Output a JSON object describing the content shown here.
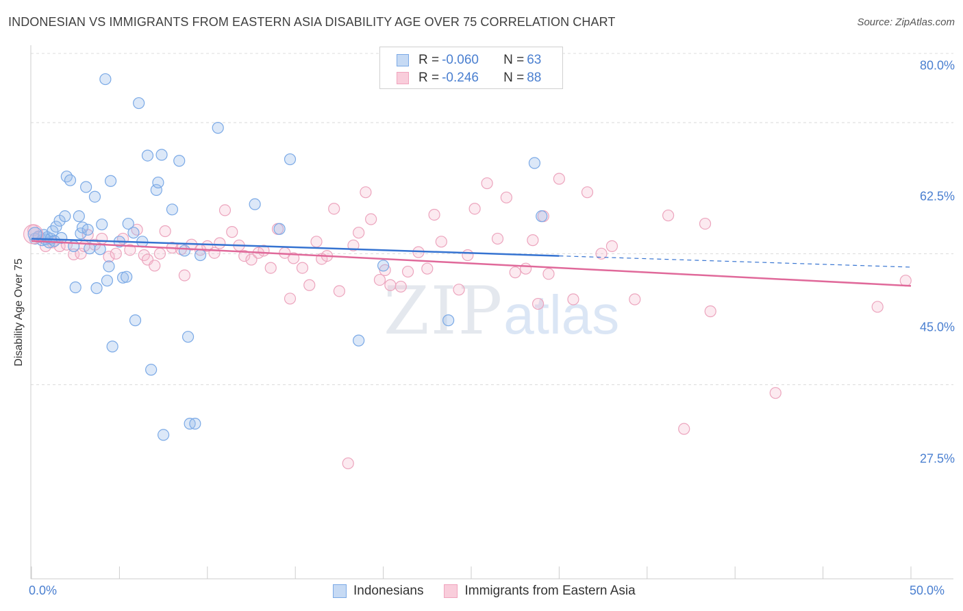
{
  "title": "INDONESIAN VS IMMIGRANTS FROM EASTERN ASIA DISABILITY AGE OVER 75 CORRELATION CHART",
  "source": "Source: ZipAtlas.com",
  "watermark": {
    "zip": "ZIP",
    "atlas": "atlas"
  },
  "legend_top": {
    "rows": [
      {
        "r_label": "R = ",
        "r_value": "-0.060",
        "n_label": "N = ",
        "n_value": "63"
      },
      {
        "r_label": "R = ",
        "r_value": "-0.246",
        "n_label": "N = ",
        "n_value": "88"
      }
    ]
  },
  "legend_bottom": [
    "Indonesians",
    "Immigrants from Eastern Asia"
  ],
  "chart_data": {
    "type": "scatter",
    "title": "INDONESIAN VS IMMIGRANTS FROM EASTERN ASIA DISABILITY AGE OVER 75 CORRELATION CHART",
    "xlabel": "",
    "ylabel": "Disability Age Over 75",
    "xlim": [
      0,
      50
    ],
    "ylim": [
      10,
      83
    ],
    "y_ticks": [
      27.5,
      45.0,
      62.5,
      80.0
    ],
    "y_tick_labels": [
      "27.5%",
      "45.0%",
      "62.5%",
      "80.0%"
    ],
    "x_tick_labels": [
      "0.0%",
      "50.0%"
    ],
    "grid": "horizontal dashed",
    "legend_position": "top-center",
    "colors": {
      "Indonesians": "#7aa9e6",
      "Immigrants from Eastern Asia": "#f0a3bd",
      "Indonesians_line": "#3573d1",
      "Immigrants_line": "#e0699a"
    },
    "series": [
      {
        "name": "Indonesians",
        "r": -0.06,
        "n": 63,
        "trend": {
          "x0": 0,
          "y0": 47.0,
          "x1": 30,
          "y1": 44.7,
          "dashed_to": 50,
          "dashed_y": 43.2
        },
        "points": [
          [
            0.2,
            47.0
          ],
          [
            0.4,
            47.3
          ],
          [
            0.6,
            46.8
          ],
          [
            0.7,
            47.5
          ],
          [
            0.8,
            46.9
          ],
          [
            0.9,
            47.2
          ],
          [
            1.0,
            46.5
          ],
          [
            1.1,
            47.0
          ],
          [
            1.2,
            48.0
          ],
          [
            1.3,
            46.7
          ],
          [
            1.4,
            48.6
          ],
          [
            1.6,
            49.4
          ],
          [
            1.7,
            47.1
          ],
          [
            1.9,
            50.0
          ],
          [
            2.0,
            55.3
          ],
          [
            2.2,
            54.8
          ],
          [
            2.4,
            46.0
          ],
          [
            2.5,
            40.5
          ],
          [
            2.7,
            50.0
          ],
          [
            2.8,
            47.7
          ],
          [
            2.9,
            48.5
          ],
          [
            3.1,
            53.9
          ],
          [
            3.2,
            48.2
          ],
          [
            3.3,
            45.7
          ],
          [
            3.6,
            52.6
          ],
          [
            3.7,
            40.4
          ],
          [
            3.9,
            45.6
          ],
          [
            4.0,
            48.9
          ],
          [
            4.2,
            68.3
          ],
          [
            4.3,
            41.4
          ],
          [
            4.4,
            43.3
          ],
          [
            4.5,
            54.7
          ],
          [
            4.6,
            32.6
          ],
          [
            5.0,
            46.6
          ],
          [
            5.2,
            41.8
          ],
          [
            5.4,
            41.9
          ],
          [
            5.5,
            49.0
          ],
          [
            5.8,
            47.8
          ],
          [
            5.9,
            36.1
          ],
          [
            6.1,
            65.1
          ],
          [
            6.3,
            46.6
          ],
          [
            6.6,
            58.1
          ],
          [
            6.8,
            29.5
          ],
          [
            7.1,
            53.5
          ],
          [
            7.2,
            54.5
          ],
          [
            7.4,
            58.2
          ],
          [
            7.5,
            20.8
          ],
          [
            8.0,
            50.9
          ],
          [
            8.4,
            57.4
          ],
          [
            8.7,
            45.4
          ],
          [
            8.9,
            33.9
          ],
          [
            9.0,
            22.3
          ],
          [
            9.3,
            22.3
          ],
          [
            9.6,
            44.8
          ],
          [
            10.6,
            61.8
          ],
          [
            12.7,
            51.6
          ],
          [
            14.1,
            48.3
          ],
          [
            14.7,
            57.6
          ],
          [
            18.6,
            33.4
          ],
          [
            20.0,
            43.4
          ],
          [
            23.7,
            36.1
          ],
          [
            28.6,
            57.1
          ],
          [
            29.0,
            50.0
          ]
        ]
      },
      {
        "name": "Immigrants from Eastern Asia",
        "r": -0.246,
        "n": 88,
        "trend": {
          "x0": 0,
          "y0": 46.7,
          "x1": 50,
          "y1": 40.7
        },
        "points": [
          [
            0.1,
            48.1
          ],
          [
            0.4,
            47.2
          ],
          [
            0.8,
            46.0
          ],
          [
            1.2,
            46.5
          ],
          [
            1.6,
            46.0
          ],
          [
            2.0,
            46.2
          ],
          [
            2.4,
            44.9
          ],
          [
            2.8,
            45.0
          ],
          [
            3.2,
            47.5
          ],
          [
            3.6,
            46.2
          ],
          [
            4.0,
            47.0
          ],
          [
            4.4,
            44.6
          ],
          [
            4.8,
            45.0
          ],
          [
            5.2,
            47.0
          ],
          [
            5.6,
            45.5
          ],
          [
            6.0,
            48.2
          ],
          [
            6.4,
            44.8
          ],
          [
            6.6,
            44.2
          ],
          [
            7.0,
            43.4
          ],
          [
            7.3,
            45.0
          ],
          [
            7.6,
            48.0
          ],
          [
            8.0,
            45.8
          ],
          [
            8.5,
            45.6
          ],
          [
            8.7,
            42.1
          ],
          [
            9.1,
            46.2
          ],
          [
            9.6,
            45.5
          ],
          [
            10.0,
            46.0
          ],
          [
            10.4,
            45.1
          ],
          [
            10.7,
            46.4
          ],
          [
            11.0,
            50.8
          ],
          [
            11.4,
            47.9
          ],
          [
            11.8,
            46.1
          ],
          [
            12.1,
            44.7
          ],
          [
            12.5,
            44.2
          ],
          [
            12.9,
            45.1
          ],
          [
            13.2,
            45.4
          ],
          [
            13.6,
            43.1
          ],
          [
            14.0,
            48.3
          ],
          [
            14.4,
            45.1
          ],
          [
            14.7,
            39.0
          ],
          [
            14.9,
            44.4
          ],
          [
            15.4,
            43.1
          ],
          [
            15.8,
            40.8
          ],
          [
            16.2,
            46.6
          ],
          [
            16.5,
            44.3
          ],
          [
            16.8,
            44.7
          ],
          [
            17.2,
            51.0
          ],
          [
            17.5,
            40.0
          ],
          [
            18.3,
            46.1
          ],
          [
            18.6,
            47.8
          ],
          [
            19.0,
            53.2
          ],
          [
            19.3,
            49.6
          ],
          [
            19.8,
            41.5
          ],
          [
            20.1,
            42.8
          ],
          [
            20.4,
            40.8
          ],
          [
            21.0,
            40.6
          ],
          [
            21.4,
            42.6
          ],
          [
            22.0,
            45.2
          ],
          [
            22.5,
            43.0
          ],
          [
            22.9,
            50.2
          ],
          [
            23.3,
            46.6
          ],
          [
            24.3,
            40.2
          ],
          [
            24.8,
            44.8
          ],
          [
            25.2,
            51.0
          ],
          [
            25.9,
            54.4
          ],
          [
            26.5,
            47.0
          ],
          [
            27.0,
            52.5
          ],
          [
            27.5,
            42.5
          ],
          [
            28.1,
            43.0
          ],
          [
            28.5,
            46.8
          ],
          [
            28.8,
            38.3
          ],
          [
            29.1,
            50.0
          ],
          [
            29.4,
            42.3
          ],
          [
            30.0,
            55.0
          ],
          [
            30.8,
            38.9
          ],
          [
            31.6,
            53.2
          ],
          [
            32.4,
            45.0
          ],
          [
            33.0,
            46.0
          ],
          [
            34.3,
            38.9
          ],
          [
            36.2,
            50.1
          ],
          [
            37.1,
            21.6
          ],
          [
            38.3,
            49.0
          ],
          [
            38.6,
            37.3
          ],
          [
            42.3,
            26.4
          ],
          [
            48.1,
            37.9
          ],
          [
            49.7,
            41.4
          ],
          [
            18.0,
            17.0
          ],
          [
            3.0,
            46.0
          ]
        ]
      }
    ]
  }
}
